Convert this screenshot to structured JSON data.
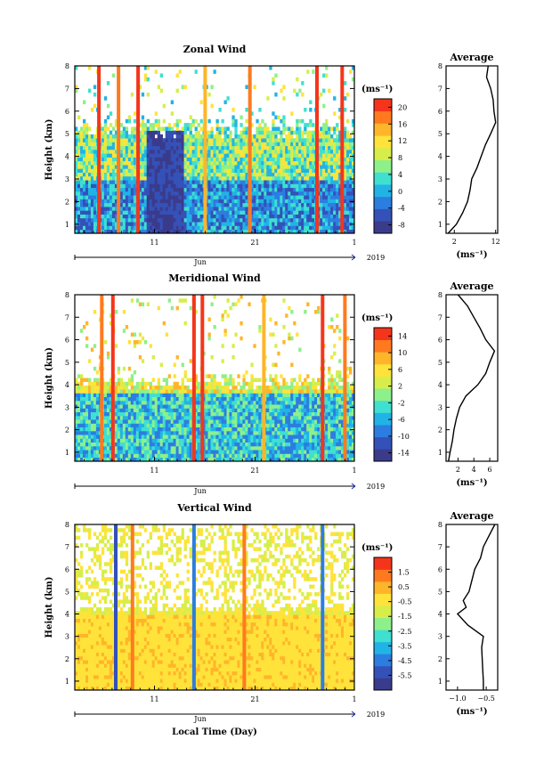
{
  "chart_data": [
    {
      "type": "heatmap",
      "title": "Zonal Wind",
      "ylabel": "Height (km)",
      "y_ticks": [
        "1",
        "2",
        "3",
        "4",
        "5",
        "6",
        "7",
        "8"
      ],
      "ylim": [
        0.6,
        8
      ],
      "x_ticks": [
        "11",
        "21",
        "1"
      ],
      "x_month": "Jun",
      "year": "2019",
      "colorbar": {
        "unit": "(ms⁻¹)",
        "min": -10,
        "max": 22,
        "ticks": [
          "20",
          "16",
          "12",
          "8",
          "4",
          "0",
          "-4",
          "-8"
        ]
      },
      "profile": {
        "title": "Average",
        "xlabel": "(ms⁻¹)",
        "x_ticks": [
          "2",
          "12"
        ],
        "xlim": [
          0,
          12.5
        ],
        "height": [
          0.6,
          0.8,
          1.0,
          1.5,
          2.0,
          2.5,
          3.0,
          3.5,
          4.0,
          4.5,
          5.0,
          5.5,
          6.0,
          6.5,
          7.0,
          7.5,
          8.0
        ],
        "value": [
          0.5,
          1.5,
          2.5,
          4.0,
          5.2,
          5.8,
          6.2,
          7.5,
          8.5,
          9.5,
          10.8,
          12.0,
          11.6,
          11.4,
          10.8,
          9.8,
          10.2
        ]
      }
    },
    {
      "type": "heatmap",
      "title": "Meridional Wind",
      "ylabel": "Height (km)",
      "y_ticks": [
        "1",
        "2",
        "3",
        "4",
        "5",
        "6",
        "7",
        "8"
      ],
      "ylim": [
        0.6,
        8
      ],
      "x_ticks": [
        "11",
        "21",
        "1"
      ],
      "x_month": "Jun",
      "year": "2019",
      "colorbar": {
        "unit": "(ms⁻¹)",
        "min": -16,
        "max": 16,
        "ticks": [
          "14",
          "10",
          "6",
          "2",
          "-2",
          "-6",
          "-10",
          "-14"
        ]
      },
      "profile": {
        "title": "Average",
        "xlabel": "(ms⁻¹)",
        "x_ticks": [
          "2",
          "4",
          "6"
        ],
        "xlim": [
          0.5,
          7
        ],
        "height": [
          0.6,
          1.0,
          1.5,
          2.0,
          2.5,
          3.0,
          3.5,
          4.0,
          4.5,
          5.0,
          5.5,
          6.0,
          6.5,
          7.0,
          7.5,
          8.0
        ],
        "value": [
          0.8,
          1.0,
          1.3,
          1.5,
          1.8,
          2.2,
          3.0,
          4.5,
          5.5,
          6.0,
          6.6,
          5.5,
          4.8,
          4.0,
          3.2,
          2.0
        ]
      }
    },
    {
      "type": "heatmap",
      "title": "Vertical Wind",
      "ylabel": "Height (km)",
      "xlabel": "Local Time (Day)",
      "y_ticks": [
        "1",
        "2",
        "3",
        "4",
        "5",
        "6",
        "7",
        "8"
      ],
      "ylim": [
        0.6,
        8
      ],
      "x_ticks": [
        "11",
        "21",
        "1"
      ],
      "x_month": "Jun",
      "year": "2019",
      "colorbar": {
        "unit": "(ms⁻¹)",
        "min": -6.5,
        "max": 2.5,
        "ticks": [
          "1.5",
          "0.5",
          "-0.5",
          "-1.5",
          "-2.5",
          "-3.5",
          "-4.5",
          "-5.5"
        ]
      },
      "profile": {
        "title": "Average",
        "xlabel": "(ms⁻¹)",
        "x_ticks": [
          "−1.0",
          "−0.5"
        ],
        "xlim": [
          -1.2,
          -0.3
        ],
        "height": [
          0.6,
          1.0,
          1.5,
          2.0,
          2.5,
          3.0,
          3.5,
          4.0,
          4.3,
          4.6,
          5.0,
          5.5,
          6.0,
          6.5,
          7.0,
          7.5,
          8.0
        ],
        "value": [
          -0.55,
          -0.55,
          -0.56,
          -0.57,
          -0.58,
          -0.55,
          -0.82,
          -1.0,
          -0.85,
          -0.9,
          -0.8,
          -0.75,
          -0.7,
          -0.6,
          -0.55,
          -0.45,
          -0.35
        ]
      }
    }
  ],
  "colors": {
    "jet": [
      "#3b3b8c",
      "#3451b8",
      "#2c7de0",
      "#21b3e6",
      "#3fe0d0",
      "#8ef08a",
      "#d7ee4a",
      "#ffe33a",
      "#ffb52a",
      "#ff7a1f",
      "#f5351b"
    ]
  }
}
